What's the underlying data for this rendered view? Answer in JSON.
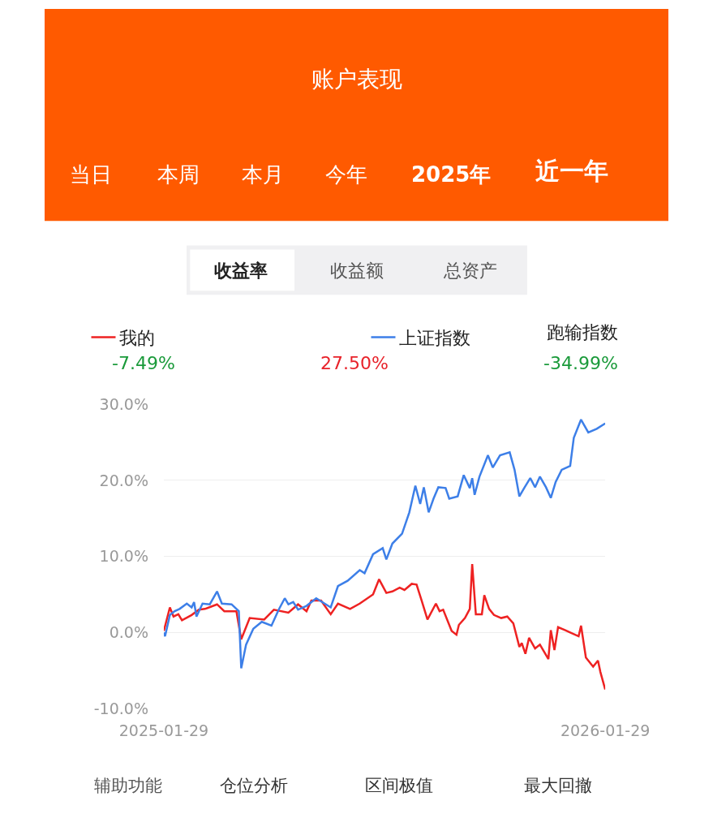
{
  "chart_data": {
    "type": "line",
    "title": "账户表现",
    "annotations": [
      "当日",
      "本周",
      "本月",
      "今年",
      "2025年",
      "近一年",
      "收益率",
      "收益额",
      "总资产",
      "-7.49%",
      "27.50%",
      "跑输指数",
      "-34.99%",
      "辅助功能",
      "仓位分析",
      "区间极值",
      "最大回撤"
    ],
    "series": [
      {
        "name": "我的",
        "color": "#ee2222",
        "x": [
          "2025-01-29",
          "2025-02-03",
          "2025-02-06",
          "2025-02-10",
          "2025-02-13",
          "2025-02-21",
          "2025-02-27",
          "2025-03-04",
          "2025-03-14",
          "2025-03-20",
          "2025-03-30",
          "2025-04-03",
          "2025-04-10",
          "2025-04-22",
          "2025-04-30",
          "2025-05-12",
          "2025-05-20",
          "2025-05-27",
          "2025-05-31",
          "2025-06-08",
          "2025-06-16",
          "2025-06-22",
          "2025-07-02",
          "2025-07-10",
          "2025-07-21",
          "2025-07-26",
          "2025-08-01",
          "2025-08-06",
          "2025-08-12",
          "2025-08-16",
          "2025-08-22",
          "2025-08-26",
          "2025-08-30",
          "2025-09-04",
          "2025-09-11",
          "2025-09-14",
          "2025-09-17",
          "2025-09-24",
          "2025-09-28",
          "2025-09-30",
          "2025-10-05",
          "2025-10-09",
          "2025-10-11",
          "2025-10-14",
          "2025-10-19",
          "2025-10-21",
          "2025-10-25",
          "2025-10-29",
          "2025-11-04",
          "2025-11-09",
          "2025-11-14",
          "2025-11-19",
          "2025-11-21",
          "2025-11-24",
          "2025-11-27",
          "2025-12-02",
          "2025-12-06",
          "2025-12-13",
          "2025-12-15",
          "2025-12-18",
          "2025-12-21",
          "2025-12-27",
          "2025-12-31",
          "2026-01-07",
          "2026-01-09",
          "2026-01-13",
          "2026-01-19",
          "2026-01-23",
          "2026-01-25",
          "2026-01-29"
        ],
        "values": [
          0.2,
          3.3,
          2.1,
          2.4,
          1.6,
          2.3,
          3.0,
          3.1,
          3.7,
          2.8,
          2.8,
          -0.9,
          1.9,
          1.7,
          3.0,
          2.6,
          3.7,
          2.8,
          4.2,
          4.2,
          2.4,
          3.8,
          3.1,
          3.8,
          5.0,
          7.0,
          5.2,
          5.4,
          5.9,
          5.6,
          6.4,
          6.3,
          4.3,
          1.7,
          3.8,
          2.8,
          3.0,
          0.2,
          -0.3,
          1.0,
          1.9,
          3.1,
          9.0,
          2.4,
          2.4,
          4.9,
          3.1,
          2.3,
          1.9,
          2.1,
          1.2,
          -1.9,
          -1.4,
          -2.8,
          -0.7,
          -2.1,
          -1.6,
          -3.5,
          0.3,
          -2.3,
          0.7,
          0.3,
          0.0,
          -0.5,
          0.9,
          -3.3,
          -4.5,
          -3.7,
          -5.2,
          -7.49
        ]
      },
      {
        "name": "上证指数",
        "color": "#3d7fe8",
        "x": [
          "2025-01-29",
          "2025-01-30",
          "2025-02-03",
          "2025-02-07",
          "2025-02-11",
          "2025-02-17",
          "2025-02-21",
          "2025-02-23",
          "2025-02-25",
          "2025-03-02",
          "2025-03-08",
          "2025-03-14",
          "2025-03-18",
          "2025-03-26",
          "2025-04-01",
          "2025-04-03",
          "2025-04-07",
          "2025-04-13",
          "2025-04-20",
          "2025-04-28",
          "2025-05-04",
          "2025-05-09",
          "2025-05-12",
          "2025-05-16",
          "2025-05-20",
          "2025-05-27",
          "2025-06-04",
          "2025-06-16",
          "2025-06-22",
          "2025-06-30",
          "2025-07-10",
          "2025-07-14",
          "2025-07-21",
          "2025-07-29",
          "2025-08-01",
          "2025-08-06",
          "2025-08-14",
          "2025-08-20",
          "2025-08-25",
          "2025-08-29",
          "2025-09-01",
          "2025-09-05",
          "2025-09-09",
          "2025-09-13",
          "2025-09-19",
          "2025-09-22",
          "2025-09-29",
          "2025-10-04",
          "2025-10-09",
          "2025-10-11",
          "2025-10-13",
          "2025-10-17",
          "2025-10-24",
          "2025-10-28",
          "2025-11-03",
          "2025-11-11",
          "2025-11-15",
          "2025-11-19",
          "2025-11-23",
          "2025-11-28",
          "2025-12-02",
          "2025-12-06",
          "2025-12-11",
          "2025-12-15",
          "2025-12-19",
          "2025-12-24",
          "2025-12-31",
          "2026-01-03",
          "2026-01-09",
          "2026-01-15",
          "2026-01-22",
          "2026-01-29"
        ],
        "values": [
          0.0,
          -0.5,
          2.3,
          2.8,
          3.1,
          3.8,
          3.3,
          4.0,
          2.1,
          3.8,
          3.7,
          5.4,
          3.8,
          3.7,
          2.8,
          -4.7,
          -1.6,
          0.5,
          1.4,
          0.9,
          3.0,
          4.5,
          3.7,
          4.0,
          3.0,
          3.5,
          4.5,
          3.3,
          6.1,
          6.8,
          8.2,
          7.8,
          10.3,
          11.1,
          9.6,
          11.7,
          13.0,
          15.8,
          19.3,
          16.9,
          19.1,
          15.8,
          17.6,
          19.1,
          19.0,
          17.6,
          17.9,
          20.7,
          19.0,
          20.3,
          18.1,
          20.5,
          23.3,
          21.7,
          23.3,
          23.7,
          21.4,
          17.9,
          19.0,
          20.3,
          19.1,
          20.5,
          19.1,
          17.7,
          19.8,
          21.4,
          21.9,
          25.6,
          28.0,
          26.3,
          26.8,
          27.5
        ]
      }
    ],
    "xlim": [
      "2025-01-29",
      "2026-01-29"
    ],
    "xticks": [
      "2025-01-29",
      "2026-01-29"
    ],
    "ylim": [
      -10,
      30
    ],
    "yticks": [
      {
        "value": -10,
        "label": "-10.0%"
      },
      {
        "value": 0,
        "label": "0.0%"
      },
      {
        "value": 10,
        "label": "10.0%"
      },
      {
        "value": 20,
        "label": "20.0%"
      },
      {
        "value": 30,
        "label": "30.0%"
      }
    ],
    "grid": "y",
    "legend": "top",
    "marker": "none",
    "line_style": "solid"
  }
}
